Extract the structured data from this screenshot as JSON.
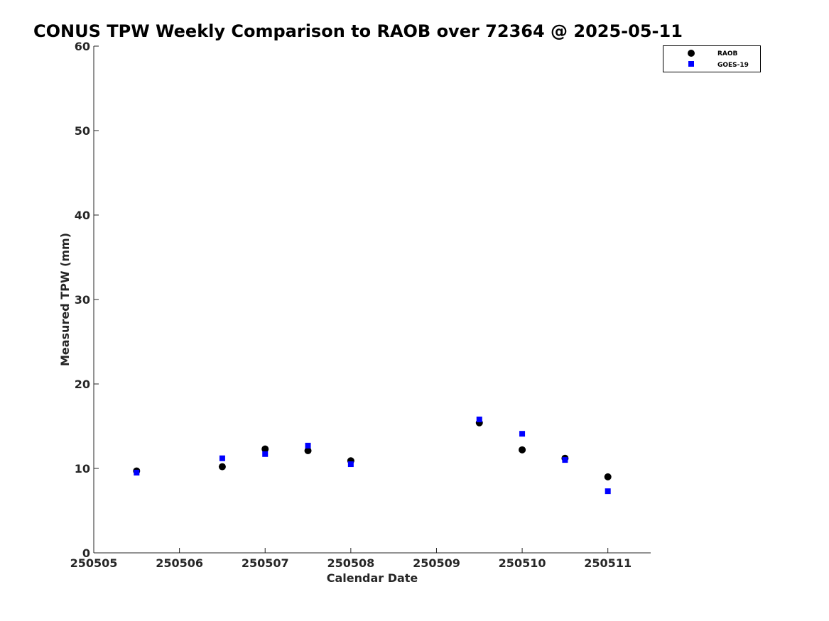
{
  "chart_data": {
    "type": "scatter",
    "title": "CONUS TPW Weekly Comparison to RAOB over 72364 @ 2025-05-11",
    "xlabel": "Calendar Date",
    "ylabel": "Measured TPW (mm)",
    "xlim": [
      250505,
      250511.5
    ],
    "ylim": [
      0,
      60
    ],
    "xticks": [
      "250505",
      "250506",
      "250507",
      "250508",
      "250509",
      "250510",
      "250511"
    ],
    "yticks": [
      "0",
      "10",
      "20",
      "30",
      "40",
      "50",
      "60"
    ],
    "grid": false,
    "legend_position": "top-right",
    "series": [
      {
        "name": "RAOB",
        "marker": "circle",
        "color": "#000000",
        "x": [
          250505.5,
          250506.5,
          250507,
          250507.5,
          250508,
          250509.5,
          250510,
          250510.5,
          250511
        ],
        "y": [
          9.7,
          10.2,
          12.3,
          12.1,
          10.9,
          15.4,
          12.2,
          11.2,
          9.0
        ]
      },
      {
        "name": "GOES-19",
        "marker": "square",
        "color": "#0000ff",
        "x": [
          250505.5,
          250506.5,
          250507,
          250507.5,
          250508,
          250509.5,
          250510,
          250510.5,
          250511
        ],
        "y": [
          9.5,
          11.2,
          11.7,
          12.7,
          10.5,
          15.8,
          14.1,
          11.0,
          7.3
        ]
      }
    ]
  }
}
